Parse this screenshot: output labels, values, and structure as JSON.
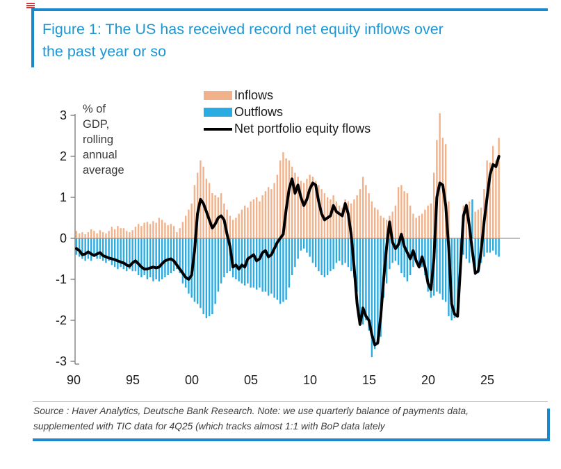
{
  "figure": {
    "title": "Figure 1: The US has received record net equity inflows over the past year or so",
    "source_note": "Source : Haver Analytics, Deutsche Bank Research. Note: we use quarterly balance of payments data, supplemented with TIC data for 4Q25 (which tracks almost 1:1 with BoP data lately",
    "title_color": "#1e96d2",
    "bracket_color": "#1989cb"
  },
  "axis_note": "% of GDP, rolling annual average",
  "legend": [
    {
      "label": "Inflows",
      "color": "#f1b28b",
      "type": "bar"
    },
    {
      "label": "Outflows",
      "color": "#2aace2",
      "type": "bar"
    },
    {
      "label": "Net portfolio equity flows",
      "color": "#000000",
      "type": "line"
    }
  ],
  "chart_data": {
    "type": "bar",
    "subtype": "quarterly bars with net line overlay",
    "frequency": "quarterly",
    "start_year": 1990,
    "end_year": 2025,
    "ylabel": "% of GDP, rolling annual average",
    "ylim": [
      -3,
      3
    ],
    "y_ticks": [
      3,
      2,
      1,
      0,
      -1,
      -2,
      -3
    ],
    "x_tick_labels": [
      "90",
      "95",
      "00",
      "05",
      "10",
      "15",
      "20",
      "25"
    ],
    "x_tick_years": [
      1990,
      1995,
      2000,
      2005,
      2010,
      2015,
      2020,
      2025
    ],
    "grid": false,
    "legend_position": "top-center",
    "series": [
      {
        "name": "Inflows",
        "type": "bar",
        "color": "#f1b28b",
        "values": [
          0.18,
          0.12,
          0.15,
          0.1,
          0.15,
          0.22,
          0.18,
          0.12,
          0.2,
          0.15,
          0.12,
          0.18,
          0.28,
          0.22,
          0.3,
          0.25,
          0.25,
          0.18,
          0.15,
          0.2,
          0.28,
          0.35,
          0.3,
          0.38,
          0.4,
          0.35,
          0.42,
          0.38,
          0.5,
          0.45,
          0.38,
          0.32,
          0.35,
          0.3,
          0.15,
          0.25,
          0.4,
          0.55,
          0.7,
          0.85,
          1.3,
          1.6,
          1.9,
          1.75,
          1.45,
          1.35,
          1.1,
          1.05,
          1.0,
          1.1,
          0.85,
          0.7,
          0.55,
          0.45,
          0.5,
          0.6,
          0.7,
          0.8,
          0.75,
          0.9,
          0.95,
          1.0,
          0.9,
          1.05,
          1.15,
          1.25,
          1.2,
          1.35,
          1.55,
          1.9,
          2.1,
          1.95,
          1.9,
          1.75,
          1.6,
          1.5,
          1.4,
          1.35,
          1.45,
          1.55,
          1.5,
          1.4,
          1.3,
          1.2,
          1.1,
          1.0,
          0.95,
          1.05,
          0.9,
          0.8,
          0.75,
          0.95,
          0.9,
          0.85,
          0.95,
          1.05,
          1.2,
          1.5,
          1.3,
          1.1,
          0.9,
          0.75,
          0.7,
          0.55,
          0.5,
          0.45,
          0.55,
          0.65,
          0.8,
          1.25,
          1.3,
          1.15,
          1.1,
          0.8,
          0.6,
          0.5,
          0.55,
          0.6,
          0.7,
          0.8,
          0.85,
          1.6,
          2.4,
          3.05,
          2.45,
          2.3,
          0.9,
          -0.3,
          -0.9,
          -1.15,
          -0.4,
          0.8,
          0.85,
          0.9,
          0.6,
          0.65,
          0.7,
          0.75,
          1.2,
          1.9,
          1.85,
          2.25,
          1.9,
          2.45
        ]
      },
      {
        "name": "Outflows",
        "type": "bar",
        "color": "#2aace2",
        "values": [
          -0.4,
          -0.45,
          -0.5,
          -0.55,
          -0.5,
          -0.55,
          -0.45,
          -0.5,
          -0.5,
          -0.55,
          -0.6,
          -0.55,
          -0.65,
          -0.7,
          -0.75,
          -0.7,
          -0.75,
          -0.8,
          -0.75,
          -0.8,
          -0.8,
          -0.9,
          -0.95,
          -0.9,
          -1.0,
          -0.95,
          -1.05,
          -1.0,
          -1.05,
          -1.0,
          -0.95,
          -0.9,
          -0.85,
          -0.8,
          -0.75,
          -0.85,
          -1.1,
          -1.2,
          -1.35,
          -1.45,
          -1.55,
          -1.6,
          -1.7,
          -1.85,
          -1.95,
          -1.9,
          -1.85,
          -1.6,
          -1.3,
          -1.1,
          -0.95,
          -0.85,
          -0.8,
          -0.95,
          -1.0,
          -1.05,
          -1.1,
          -1.15,
          -1.1,
          -1.2,
          -1.2,
          -1.25,
          -1.2,
          -1.3,
          -1.3,
          -1.4,
          -1.35,
          -1.45,
          -1.5,
          -1.6,
          -1.55,
          -1.5,
          -1.2,
          -0.9,
          -0.7,
          -0.5,
          -0.3,
          -0.25,
          -0.35,
          -0.45,
          -0.6,
          -0.7,
          -0.8,
          -0.9,
          -0.95,
          -0.9,
          -0.8,
          -0.75,
          -0.6,
          -0.55,
          -0.65,
          -0.6,
          -0.7,
          -0.8,
          -0.95,
          -1.3,
          -1.9,
          -2.1,
          -2.0,
          -2.25,
          -2.9,
          -2.7,
          -2.6,
          -2.4,
          -1.45,
          -1.1,
          -0.75,
          -0.6,
          -0.55,
          -0.65,
          -0.85,
          -0.95,
          -1.05,
          -0.9,
          -0.7,
          -0.6,
          -0.6,
          -0.7,
          -0.9,
          -1.3,
          -1.45,
          -1.4,
          -1.3,
          -1.35,
          -1.5,
          -1.55,
          -1.9,
          -2.0,
          -1.95,
          -1.85,
          -0.7,
          -0.4,
          -0.5,
          -0.6,
          0.95,
          -0.9,
          -0.85,
          -0.6,
          -0.45,
          -0.35,
          -0.35,
          -0.3,
          -0.4,
          -0.45
        ]
      },
      {
        "name": "Net portfolio equity flows",
        "type": "line",
        "color": "#000000",
        "values": [
          -0.25,
          -0.3,
          -0.4,
          -0.38,
          -0.33,
          -0.38,
          -0.42,
          -0.38,
          -0.35,
          -0.42,
          -0.45,
          -0.48,
          -0.5,
          -0.52,
          -0.55,
          -0.58,
          -0.6,
          -0.65,
          -0.68,
          -0.6,
          -0.55,
          -0.62,
          -0.7,
          -0.75,
          -0.75,
          -0.72,
          -0.7,
          -0.72,
          -0.7,
          -0.62,
          -0.55,
          -0.52,
          -0.5,
          -0.55,
          -0.65,
          -0.75,
          -0.85,
          -0.95,
          -1.0,
          -0.9,
          -0.3,
          0.6,
          0.95,
          0.85,
          0.65,
          0.45,
          0.25,
          0.35,
          0.5,
          0.55,
          0.45,
          0.1,
          -0.2,
          -0.7,
          -0.65,
          -0.75,
          -0.65,
          -0.7,
          -0.5,
          -0.45,
          -0.4,
          -0.55,
          -0.5,
          -0.35,
          -0.3,
          -0.45,
          -0.4,
          -0.25,
          -0.1,
          0.0,
          0.1,
          0.7,
          1.2,
          1.45,
          1.1,
          1.3,
          1.0,
          0.8,
          0.95,
          1.2,
          1.35,
          1.3,
          0.9,
          0.6,
          0.45,
          0.5,
          0.55,
          0.8,
          0.65,
          0.6,
          0.55,
          0.85,
          0.6,
          0.1,
          -0.7,
          -1.6,
          -2.1,
          -1.7,
          -1.9,
          -2.0,
          -2.35,
          -2.6,
          -2.55,
          -1.9,
          -1.0,
          -0.2,
          0.4,
          -0.1,
          -0.25,
          -0.15,
          0.1,
          -0.2,
          -0.35,
          -0.5,
          -0.3,
          -0.55,
          -0.7,
          -0.45,
          -0.7,
          -1.1,
          -1.25,
          -0.5,
          1.0,
          1.35,
          1.3,
          0.8,
          -0.2,
          -1.6,
          -1.85,
          -1.9,
          -0.7,
          0.55,
          0.8,
          0.3,
          -0.3,
          -0.85,
          -0.8,
          -0.3,
          0.4,
          1.0,
          1.55,
          1.8,
          1.75,
          2.0
        ]
      }
    ]
  }
}
